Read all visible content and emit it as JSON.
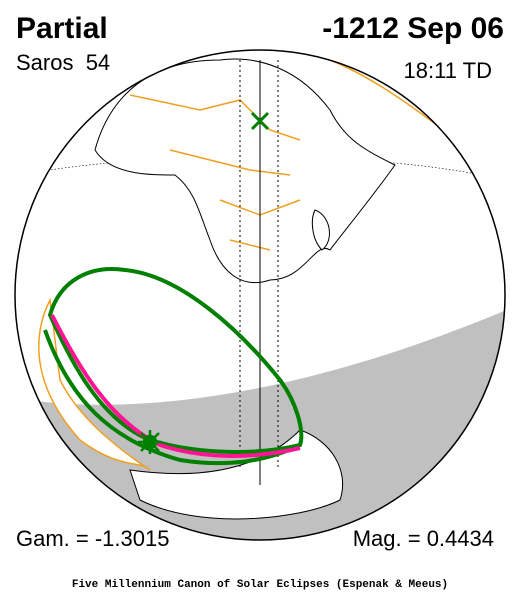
{
  "header": {
    "title": "Partial",
    "date": "-1212 Sep 06",
    "saros": "Saros  54",
    "time": "18:11 TD"
  },
  "footer": {
    "gamma": "Gam. = -1.3015",
    "magnitude": "Mag. = 0.4434",
    "credit": "Five Millennium Canon of Solar Eclipses (Espenak & Meeus)"
  }
}
